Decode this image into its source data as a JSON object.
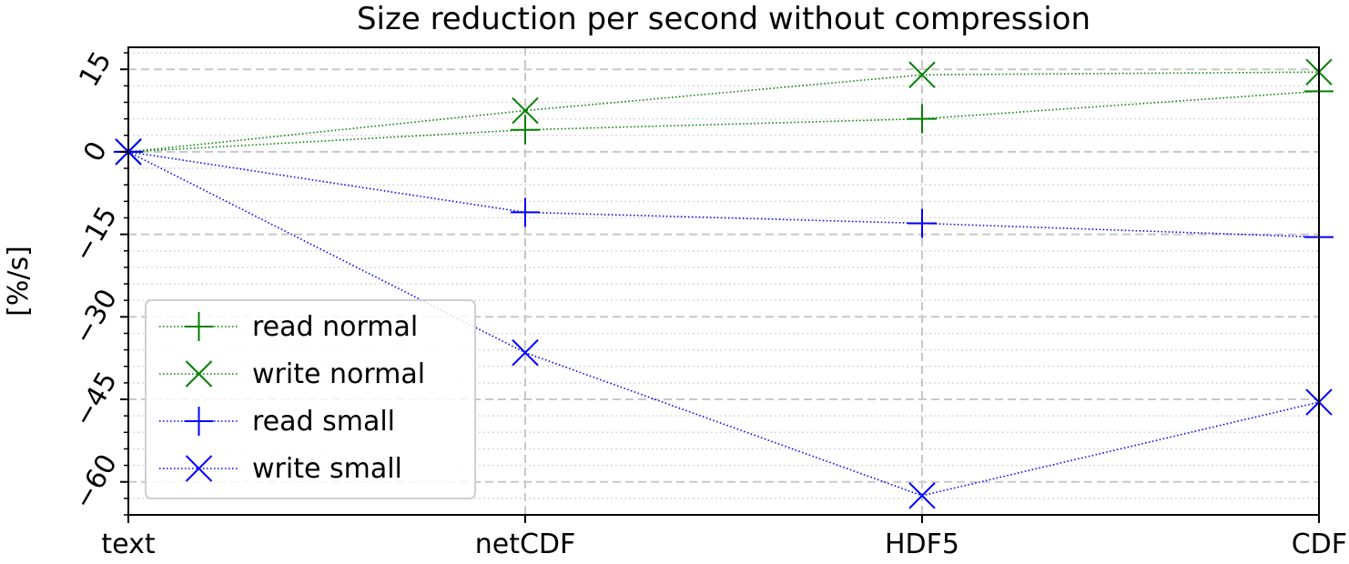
{
  "chart_data": {
    "type": "line",
    "title": "Size reduction per second without compression",
    "xlabel": "",
    "ylabel": "[%/s]",
    "categories": [
      "text",
      "netCDF",
      "HDF5",
      "CDF"
    ],
    "ylim": [
      -66,
      19
    ],
    "yticks": [
      15,
      0,
      -15,
      -30,
      -45,
      -60
    ],
    "ytick_labels": [
      "15",
      "0",
      "−15",
      "−30",
      "−45",
      "−60"
    ],
    "grid": true,
    "legend_position": "lower-left",
    "series": [
      {
        "name": "read normal",
        "marker": "plus",
        "color": "#008000",
        "values": [
          0,
          4,
          6,
          11
        ]
      },
      {
        "name": "write normal",
        "marker": "x",
        "color": "#008000",
        "values": [
          0,
          7.5,
          14,
          14.5
        ]
      },
      {
        "name": "read small",
        "marker": "plus",
        "color": "#0000ff",
        "values": [
          0,
          -11,
          -13,
          -15.5
        ]
      },
      {
        "name": "write small",
        "marker": "x",
        "color": "#0000ff",
        "values": [
          0,
          -36.5,
          -62.5,
          -45.5
        ]
      }
    ]
  }
}
